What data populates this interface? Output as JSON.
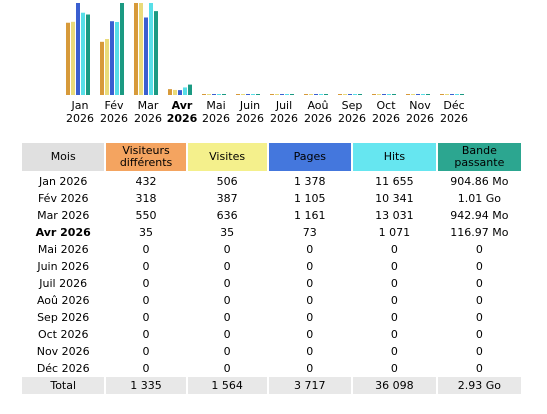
{
  "chart": {
    "months": [
      {
        "short": "Jan",
        "year": "2026",
        "current": false
      },
      {
        "short": "Fév",
        "year": "2026",
        "current": false
      },
      {
        "short": "Mar",
        "year": "2026",
        "current": false
      },
      {
        "short": "Avr",
        "year": "2026",
        "current": true
      },
      {
        "short": "Mai",
        "year": "2026",
        "current": false
      },
      {
        "short": "Juin",
        "year": "2026",
        "current": false
      },
      {
        "short": "Juil",
        "year": "2026",
        "current": false
      },
      {
        "short": "Aoû",
        "year": "2026",
        "current": false
      },
      {
        "short": "Sep",
        "year": "2026",
        "current": false
      },
      {
        "short": "Oct",
        "year": "2026",
        "current": false
      },
      {
        "short": "Nov",
        "year": "2026",
        "current": false
      },
      {
        "short": "Déc",
        "year": "2026",
        "current": false
      }
    ],
    "series_colors": [
      "#d79a3a",
      "#eadb7a",
      "#3a5fd0",
      "#58dfe8",
      "#1b9a82"
    ]
  },
  "chart_data": {
    "type": "bar",
    "categories": [
      "Jan 2026",
      "Fév 2026",
      "Mar 2026",
      "Avr 2026",
      "Mai 2026",
      "Juin 2026",
      "Juil 2026",
      "Aoû 2026",
      "Sep 2026",
      "Oct 2026",
      "Nov 2026",
      "Déc 2026"
    ],
    "series": [
      {
        "name": "Visiteurs différents",
        "values": [
          432,
          318,
          550,
          35,
          0,
          0,
          0,
          0,
          0,
          0,
          0,
          0
        ]
      },
      {
        "name": "Visites",
        "values": [
          506,
          387,
          636,
          35,
          0,
          0,
          0,
          0,
          0,
          0,
          0,
          0
        ]
      },
      {
        "name": "Pages",
        "values": [
          1378,
          1105,
          1161,
          73,
          0,
          0,
          0,
          0,
          0,
          0,
          0,
          0
        ]
      },
      {
        "name": "Hits",
        "values": [
          11655,
          10341,
          13031,
          1071,
          0,
          0,
          0,
          0,
          0,
          0,
          0,
          0
        ]
      },
      {
        "name": "Bande passante",
        "values": [
          904.86,
          1034.24,
          942.94,
          116.97,
          0,
          0,
          0,
          0,
          0,
          0,
          0,
          0
        ]
      }
    ]
  },
  "table": {
    "headers": {
      "month": "Mois",
      "unique_visitors": "Visiteurs différents",
      "visits": "Visites",
      "pages": "Pages",
      "hits": "Hits",
      "bandwidth": "Bande passante"
    },
    "rows": [
      {
        "month": "Jan 2026",
        "unique": "432",
        "visits": "506",
        "pages": "1 378",
        "hits": "11 655",
        "bw": "904.86 Mo",
        "current": false
      },
      {
        "month": "Fév 2026",
        "unique": "318",
        "visits": "387",
        "pages": "1 105",
        "hits": "10 341",
        "bw": "1.01 Go",
        "current": false
      },
      {
        "month": "Mar 2026",
        "unique": "550",
        "visits": "636",
        "pages": "1 161",
        "hits": "13 031",
        "bw": "942.94 Mo",
        "current": false
      },
      {
        "month": "Avr 2026",
        "unique": "35",
        "visits": "35",
        "pages": "73",
        "hits": "1 071",
        "bw": "116.97 Mo",
        "current": true
      },
      {
        "month": "Mai 2026",
        "unique": "0",
        "visits": "0",
        "pages": "0",
        "hits": "0",
        "bw": "0",
        "current": false
      },
      {
        "month": "Juin 2026",
        "unique": "0",
        "visits": "0",
        "pages": "0",
        "hits": "0",
        "bw": "0",
        "current": false
      },
      {
        "month": "Juil 2026",
        "unique": "0",
        "visits": "0",
        "pages": "0",
        "hits": "0",
        "bw": "0",
        "current": false
      },
      {
        "month": "Aoû 2026",
        "unique": "0",
        "visits": "0",
        "pages": "0",
        "hits": "0",
        "bw": "0",
        "current": false
      },
      {
        "month": "Sep 2026",
        "unique": "0",
        "visits": "0",
        "pages": "0",
        "hits": "0",
        "bw": "0",
        "current": false
      },
      {
        "month": "Oct 2026",
        "unique": "0",
        "visits": "0",
        "pages": "0",
        "hits": "0",
        "bw": "0",
        "current": false
      },
      {
        "month": "Nov 2026",
        "unique": "0",
        "visits": "0",
        "pages": "0",
        "hits": "0",
        "bw": "0",
        "current": false
      },
      {
        "month": "Déc 2026",
        "unique": "0",
        "visits": "0",
        "pages": "0",
        "hits": "0",
        "bw": "0",
        "current": false
      }
    ],
    "total": {
      "label": "Total",
      "unique": "1 335",
      "visits": "1 564",
      "pages": "3 717",
      "hits": "36 098",
      "bw": "2.93 Go"
    }
  }
}
